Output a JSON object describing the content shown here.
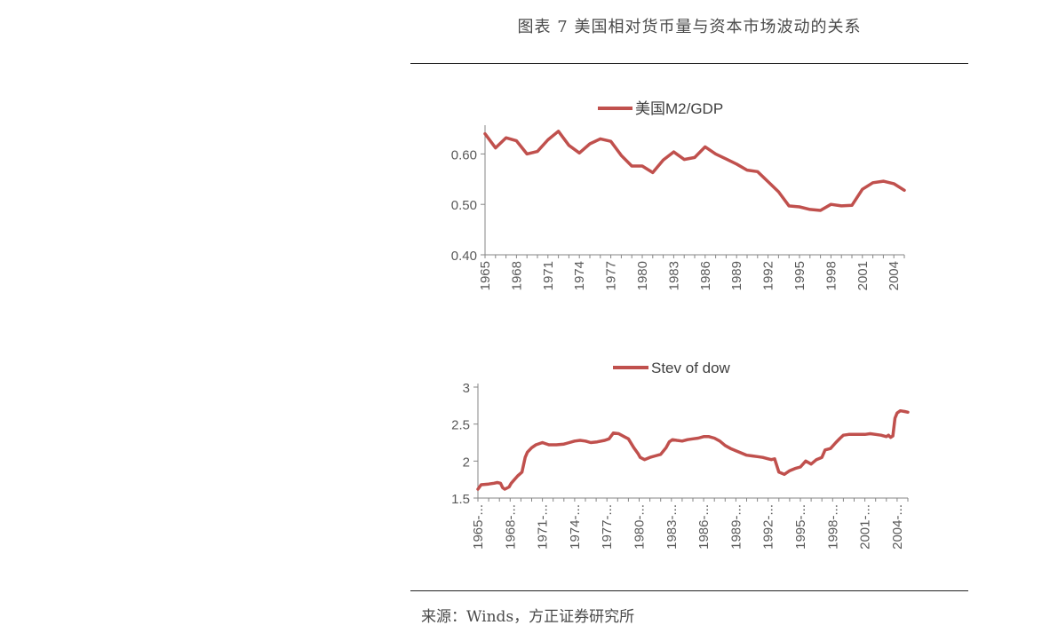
{
  "figure": {
    "title": "图表 7 美国相对货币量与资本市场波动的关系",
    "source": "来源：Winds，方正证券研究所"
  },
  "colors": {
    "series": "#c0504d",
    "axis": "#868686",
    "text": "#595959"
  },
  "chart_data": [
    {
      "type": "line",
      "legend": "美国M2/GDP",
      "legend_position": "top",
      "ylim": [
        0.4,
        0.65
      ],
      "yticks": [
        "0.40",
        "0.50",
        "0.60"
      ],
      "ytick_values": [
        0.4,
        0.5,
        0.6
      ],
      "xticks": [
        "1965",
        "1968",
        "1971",
        "1974",
        "1977",
        "1980",
        "1983",
        "1986",
        "1989",
        "1992",
        "1995",
        "1998",
        "2001",
        "2004"
      ],
      "grid": false,
      "x": [
        1965,
        1966,
        1967,
        1968,
        1969,
        1970,
        1971,
        1972,
        1973,
        1974,
        1975,
        1976,
        1977,
        1978,
        1979,
        1980,
        1981,
        1982,
        1983,
        1984,
        1985,
        1986,
        1987,
        1988,
        1989,
        1990,
        1991,
        1992,
        1993,
        1994,
        1995,
        1996,
        1997,
        1998,
        1999,
        2000,
        2001,
        2002,
        2003,
        2004,
        2005
      ],
      "series": [
        {
          "name": "美国M2/GDP",
          "values": [
            0.64,
            0.612,
            0.632,
            0.626,
            0.6,
            0.605,
            0.628,
            0.645,
            0.617,
            0.602,
            0.62,
            0.63,
            0.625,
            0.597,
            0.576,
            0.576,
            0.563,
            0.588,
            0.604,
            0.589,
            0.593,
            0.614,
            0.6,
            0.59,
            0.58,
            0.568,
            0.565,
            0.545,
            0.525,
            0.497,
            0.495,
            0.49,
            0.488,
            0.5,
            0.497,
            0.498,
            0.53,
            0.543,
            0.546,
            0.541,
            0.528
          ]
        }
      ]
    },
    {
      "type": "line",
      "legend": "Stev of dow",
      "legend_position": "top",
      "ylim": [
        1.5,
        3.0
      ],
      "yticks": [
        "1.5",
        "2",
        "2.5",
        "3"
      ],
      "ytick_values": [
        1.5,
        2.0,
        2.5,
        3.0
      ],
      "xticks": [
        "1965-...",
        "1968-...",
        "1971-...",
        "1974-...",
        "1977-...",
        "1980-...",
        "1983-...",
        "1986-...",
        "1989-...",
        "1992-...",
        "1995-...",
        "1998-...",
        "2001-...",
        "2004-..."
      ],
      "grid": false,
      "x": [
        1965.0,
        1965.3,
        1966.0,
        1966.5,
        1966.8,
        1967.1,
        1967.3,
        1967.5,
        1967.9,
        1968.1,
        1968.4,
        1968.7,
        1969.1,
        1969.4,
        1969.6,
        1970.0,
        1970.4,
        1971.0,
        1971.6,
        1972.3,
        1973.0,
        1973.5,
        1974.0,
        1974.5,
        1975.0,
        1975.5,
        1976.1,
        1976.8,
        1977.2,
        1977.6,
        1978.1,
        1978.6,
        1979.0,
        1979.5,
        1979.9,
        1980.1,
        1980.5,
        1981.0,
        1981.5,
        1982.0,
        1982.5,
        1982.8,
        1983.1,
        1983.5,
        1984.0,
        1984.5,
        1985.0,
        1985.5,
        1986.0,
        1986.5,
        1987.0,
        1987.5,
        1988.0,
        1988.5,
        1989.0,
        1989.5,
        1990.0,
        1990.5,
        1991.0,
        1991.5,
        1992.0,
        1992.3,
        1992.6,
        1993.0,
        1993.5,
        1994.0,
        1994.5,
        1995.0,
        1995.5,
        1996.0,
        1996.5,
        1997.0,
        1997.3,
        1997.8,
        1998.3,
        1998.7,
        1999.0,
        1999.5,
        2000.0,
        2000.5,
        2001.0,
        2001.5,
        2002.0,
        2002.5,
        2003.0,
        2003.2,
        2003.4,
        2003.6,
        2003.8,
        2004.0,
        2004.3,
        2004.7,
        2005.0
      ],
      "series": [
        {
          "name": "Stev of dow",
          "values": [
            1.62,
            1.68,
            1.69,
            1.7,
            1.71,
            1.7,
            1.64,
            1.62,
            1.65,
            1.7,
            1.75,
            1.8,
            1.85,
            2.05,
            2.12,
            2.18,
            2.22,
            2.25,
            2.22,
            2.22,
            2.23,
            2.25,
            2.27,
            2.28,
            2.27,
            2.25,
            2.26,
            2.28,
            2.3,
            2.38,
            2.37,
            2.33,
            2.3,
            2.18,
            2.1,
            2.05,
            2.02,
            2.05,
            2.07,
            2.09,
            2.18,
            2.26,
            2.29,
            2.28,
            2.27,
            2.29,
            2.3,
            2.31,
            2.33,
            2.33,
            2.31,
            2.27,
            2.21,
            2.17,
            2.14,
            2.11,
            2.08,
            2.07,
            2.06,
            2.05,
            2.03,
            2.02,
            2.03,
            1.85,
            1.82,
            1.87,
            1.9,
            1.92,
            2.0,
            1.96,
            2.02,
            2.05,
            2.15,
            2.17,
            2.25,
            2.31,
            2.35,
            2.36,
            2.36,
            2.36,
            2.36,
            2.37,
            2.36,
            2.35,
            2.33,
            2.35,
            2.32,
            2.34,
            2.58,
            2.65,
            2.68,
            2.67,
            2.66
          ]
        }
      ]
    }
  ]
}
